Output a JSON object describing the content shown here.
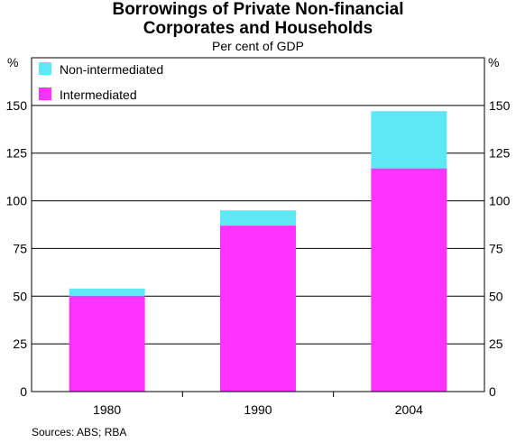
{
  "chart_data": {
    "type": "bar",
    "stacked": true,
    "title": "Borrowings of Private Non-financial Corporates and Households",
    "title_lines": [
      "Borrowings of Private Non-financial",
      "Corporates and Households"
    ],
    "subtitle": "Per cent of GDP",
    "ylabel_left": "%",
    "ylabel_right": "%",
    "categories": [
      "1980",
      "1990",
      "2004"
    ],
    "series": [
      {
        "name": "Intermediated",
        "values": [
          50,
          87,
          117
        ],
        "color": "#ff33ff"
      },
      {
        "name": "Non-intermediated",
        "values": [
          4,
          8,
          30
        ],
        "color": "#5ee8f5"
      }
    ],
    "legend_order": [
      "Non-intermediated",
      "Intermediated"
    ],
    "legend_position": "top-left",
    "ylim": [
      0,
      175
    ],
    "yticks": [
      0,
      25,
      50,
      75,
      100,
      125,
      150
    ],
    "grid": true,
    "source": "Sources: ABS; RBA"
  }
}
